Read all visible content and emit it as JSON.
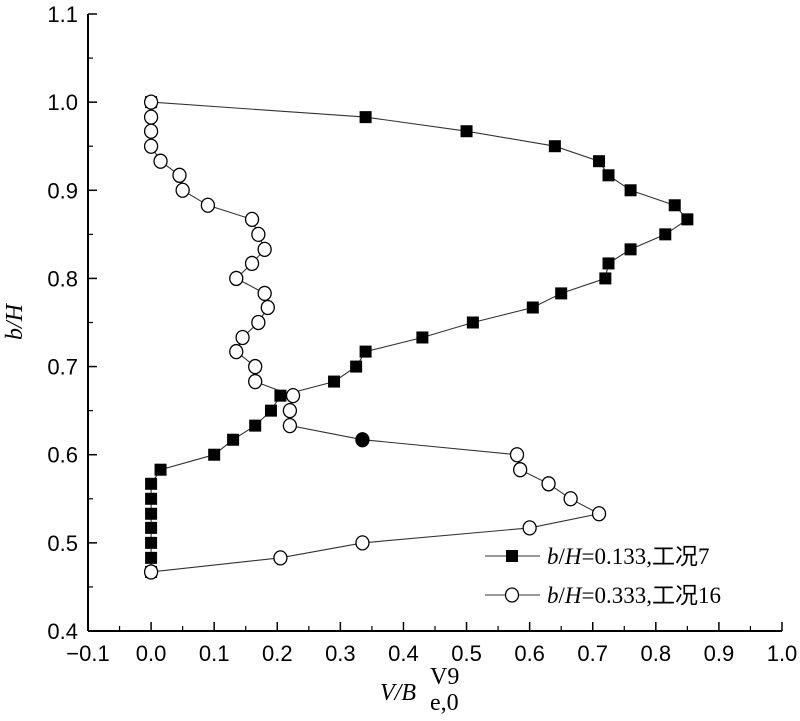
{
  "chart_data": {
    "type": "line",
    "xlabel": "V/B",
    "xlabel_sup": "V9",
    "xlabel_sub": "e,0",
    "ylabel": "b/H",
    "xlim": [
      -0.1,
      1.0
    ],
    "ylim": [
      0.4,
      1.1
    ],
    "xticks": [
      -0.1,
      0.0,
      0.1,
      0.2,
      0.3,
      0.4,
      0.5,
      0.6,
      0.7,
      0.8,
      0.9,
      1.0
    ],
    "yticks": [
      0.4,
      0.5,
      0.6,
      0.7,
      0.8,
      0.9,
      1.0,
      1.1
    ],
    "xtick_labels": [
      "−0.1",
      "0.0",
      "0.1",
      "0.2",
      "0.3",
      "0.4",
      "0.5",
      "0.6",
      "0.7",
      "0.8",
      "0.9",
      "1.0"
    ],
    "ytick_labels": [
      "0.4",
      "0.5",
      "0.6",
      "0.7",
      "0.8",
      "0.9",
      "1.0",
      "1.1"
    ],
    "grid": false,
    "legend_position": "bottom-right",
    "series": [
      {
        "name": "b/H=0.133,工况7",
        "name_italic": "b",
        "name_italic2": "H",
        "name_rest": "=0.133,工况7",
        "marker": "filled-square",
        "points": [
          [
            0.0,
            1.0
          ],
          [
            0.34,
            0.983
          ],
          [
            0.5,
            0.967
          ],
          [
            0.64,
            0.95
          ],
          [
            0.71,
            0.933
          ],
          [
            0.725,
            0.917
          ],
          [
            0.76,
            0.9
          ],
          [
            0.83,
            0.883
          ],
          [
            0.85,
            0.867
          ],
          [
            0.815,
            0.85
          ],
          [
            0.76,
            0.833
          ],
          [
            0.725,
            0.817
          ],
          [
            0.72,
            0.8
          ],
          [
            0.65,
            0.783
          ],
          [
            0.605,
            0.767
          ],
          [
            0.51,
            0.75
          ],
          [
            0.43,
            0.733
          ],
          [
            0.34,
            0.717
          ],
          [
            0.325,
            0.7
          ],
          [
            0.29,
            0.683
          ],
          [
            0.205,
            0.667
          ],
          [
            0.19,
            0.65
          ],
          [
            0.165,
            0.633
          ],
          [
            0.13,
            0.617
          ],
          [
            0.1,
            0.6
          ],
          [
            0.015,
            0.583
          ],
          [
            0.0,
            0.567
          ],
          [
            0.0,
            0.55
          ],
          [
            0.0,
            0.533
          ],
          [
            0.0,
            0.517
          ],
          [
            0.0,
            0.5
          ],
          [
            0.0,
            0.483
          ],
          [
            0.0,
            0.467
          ]
        ]
      },
      {
        "name": "b/H=0.333,工况16",
        "name_italic": "b",
        "name_italic2": "H",
        "name_rest": "=0.333,工况16",
        "marker": "open-circle",
        "points": [
          [
            0.0,
            1.0
          ],
          [
            0.0,
            0.983
          ],
          [
            0.0,
            0.967
          ],
          [
            0.0,
            0.95
          ],
          [
            0.015,
            0.933
          ],
          [
            0.045,
            0.917
          ],
          [
            0.05,
            0.9
          ],
          [
            0.09,
            0.883
          ],
          [
            0.16,
            0.867
          ],
          [
            0.17,
            0.85
          ],
          [
            0.18,
            0.833
          ],
          [
            0.16,
            0.817
          ],
          [
            0.135,
            0.8
          ],
          [
            0.18,
            0.783
          ],
          [
            0.185,
            0.767
          ],
          [
            0.17,
            0.75
          ],
          [
            0.145,
            0.733
          ],
          [
            0.135,
            0.717
          ],
          [
            0.165,
            0.7
          ],
          [
            0.165,
            0.683
          ],
          [
            0.225,
            0.667
          ],
          [
            0.22,
            0.65
          ],
          [
            0.22,
            0.633
          ],
          [
            0.335,
            0.617
          ],
          [
            0.58,
            0.6
          ],
          [
            0.585,
            0.583
          ],
          [
            0.63,
            0.567
          ],
          [
            0.665,
            0.55
          ],
          [
            0.71,
            0.533
          ],
          [
            0.6,
            0.517
          ],
          [
            0.335,
            0.5
          ],
          [
            0.205,
            0.483
          ],
          [
            0.0,
            0.467
          ]
        ],
        "filled_indices": [
          23
        ]
      }
    ]
  }
}
